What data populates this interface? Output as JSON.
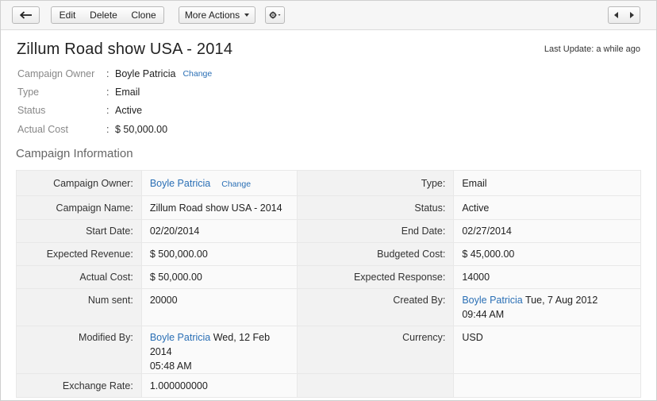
{
  "toolbar": {
    "back_icon": "arrow-left-icon",
    "edit_label": "Edit",
    "delete_label": "Delete",
    "clone_label": "Clone",
    "more_actions_label": "More Actions",
    "gear_icon": "gear-icon",
    "prev_icon": "chevron-left-icon",
    "next_icon": "chevron-right-icon"
  },
  "record": {
    "title": "Zillum Road show USA - 2014",
    "last_update": "Last Update: a while ago"
  },
  "summary": [
    {
      "label": "Campaign Owner",
      "value": "Boyle Patricia",
      "link": "Change"
    },
    {
      "label": "Type",
      "value": "Email"
    },
    {
      "label": "Status",
      "value": "Active"
    },
    {
      "label": "Actual Cost",
      "value": "$ 50,000.00"
    }
  ],
  "section": {
    "title": "Campaign Information",
    "rows": [
      {
        "l1": "Campaign Owner:",
        "v1": "Boyle Patricia",
        "v1_link": "Change",
        "l2": "Type:",
        "v2": "Email"
      },
      {
        "l1": "Campaign Name:",
        "v1": "Zillum Road show USA - 2014",
        "l2": "Status:",
        "v2": "Active"
      },
      {
        "l1": "Start Date:",
        "v1": "02/20/2014",
        "l2": "End Date:",
        "v2": "02/27/2014"
      },
      {
        "l1": "Expected Revenue:",
        "v1": "$ 500,000.00",
        "l2": "Budgeted Cost:",
        "v2": "$ 45,000.00"
      },
      {
        "l1": "Actual Cost:",
        "v1": "$ 50,000.00",
        "l2": "Expected Response:",
        "v2": "14000"
      },
      {
        "l1": "Num sent:",
        "v1": "20000",
        "l2": "Created By:",
        "v2_user": "Boyle Patricia",
        "v2_date": "Tue, 7 Aug 2012",
        "v2_time": "09:44 AM"
      },
      {
        "l1": "Modified By:",
        "v1_user": "Boyle Patricia",
        "v1_date": "Wed, 12 Feb 2014",
        "v1_time": "05:48 AM",
        "l2": "Currency:",
        "v2": "USD"
      },
      {
        "l1": "Exchange Rate:",
        "v1": "1.000000000",
        "l2": "",
        "v2": ""
      }
    ]
  }
}
